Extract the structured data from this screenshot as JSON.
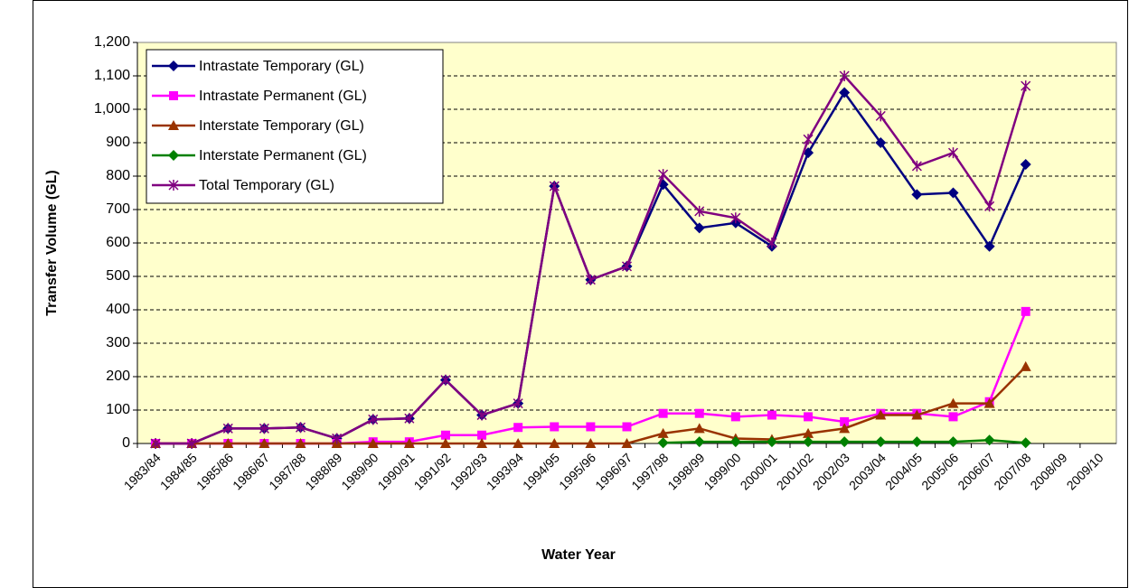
{
  "chart_data": {
    "type": "line",
    "x_label": "Water Year",
    "y_label": "Transfer Volume (GL)",
    "categories": [
      "1983/84",
      "1984/85",
      "1985/86",
      "1986/87",
      "1987/88",
      "1988/89",
      "1989/90",
      "1990/91",
      "1991/92",
      "1992/93",
      "1993/94",
      "1994/95",
      "1995/96",
      "1996/97",
      "1997/98",
      "1998/99",
      "1999/00",
      "2000/01",
      "2001/02",
      "2002/03",
      "2003/04",
      "2004/05",
      "2005/06",
      "2006/07",
      "2007/08",
      "2008/09",
      "2009/10"
    ],
    "series": [
      {
        "name": "Intrastate Temporary (GL)",
        "color": "#000080",
        "marker": "diamond",
        "values": [
          0,
          0,
          45,
          45,
          48,
          15,
          72,
          75,
          190,
          85,
          120,
          770,
          490,
          530,
          775,
          645,
          660,
          590,
          870,
          1050,
          900,
          745,
          750,
          590,
          835,
          null,
          null
        ]
      },
      {
        "name": "Intrastate Permanent (GL)",
        "color": "#ff00ff",
        "marker": "square",
        "values": [
          0,
          0,
          0,
          0,
          0,
          0,
          5,
          5,
          25,
          25,
          48,
          50,
          50,
          50,
          90,
          90,
          80,
          85,
          80,
          65,
          90,
          90,
          80,
          125,
          395,
          null,
          null
        ]
      },
      {
        "name": "Interstate Temporary (GL)",
        "color": "#993300",
        "marker": "triangle",
        "values": [
          0,
          0,
          0,
          0,
          0,
          0,
          0,
          0,
          0,
          0,
          0,
          0,
          0,
          0,
          30,
          45,
          15,
          12,
          30,
          45,
          85,
          85,
          120,
          120,
          230,
          null,
          null
        ]
      },
      {
        "name": "Interstate Permanent (GL)",
        "color": "#008000",
        "marker": "diamond",
        "values": [
          null,
          null,
          null,
          null,
          null,
          null,
          null,
          null,
          null,
          null,
          null,
          null,
          null,
          null,
          2,
          5,
          5,
          5,
          5,
          5,
          5,
          5,
          5,
          10,
          2,
          null,
          null
        ]
      },
      {
        "name": "Total Temporary (GL)",
        "color": "#800080",
        "marker": "star",
        "values": [
          0,
          0,
          45,
          45,
          48,
          15,
          72,
          75,
          190,
          85,
          120,
          770,
          490,
          530,
          805,
          695,
          675,
          600,
          910,
          1100,
          980,
          830,
          870,
          710,
          1070,
          null,
          null
        ]
      }
    ],
    "ylim": [
      0,
      1200
    ],
    "yticks": [
      0,
      100,
      200,
      300,
      400,
      500,
      600,
      700,
      800,
      900,
      {
        "value": 1000,
        "label": "1,000"
      },
      {
        "value": 1100,
        "label": "1,100"
      },
      {
        "value": 1200,
        "label": "1,200"
      }
    ],
    "grid": true,
    "legend": "upper left",
    "plot_background": "#ffffcc"
  }
}
